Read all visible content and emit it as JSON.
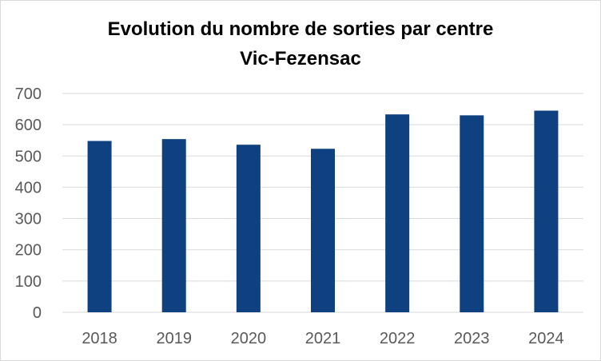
{
  "chart_data": {
    "type": "bar",
    "title": "Evolution du nombre de sorties par centre",
    "subtitle": "Vic-Fezensac",
    "xlabel": "",
    "ylabel": "",
    "categories": [
      "2018",
      "2019",
      "2020",
      "2021",
      "2022",
      "2023",
      "2024"
    ],
    "values": [
      548,
      554,
      536,
      523,
      633,
      630,
      645
    ],
    "ylim": [
      0,
      700
    ],
    "yticks": [
      "0",
      "100",
      "200",
      "300",
      "400",
      "500",
      "600",
      "700"
    ],
    "grid": true,
    "legend": "none",
    "bar_color": "#0f4180",
    "grid_color": "#d9d9d9"
  }
}
